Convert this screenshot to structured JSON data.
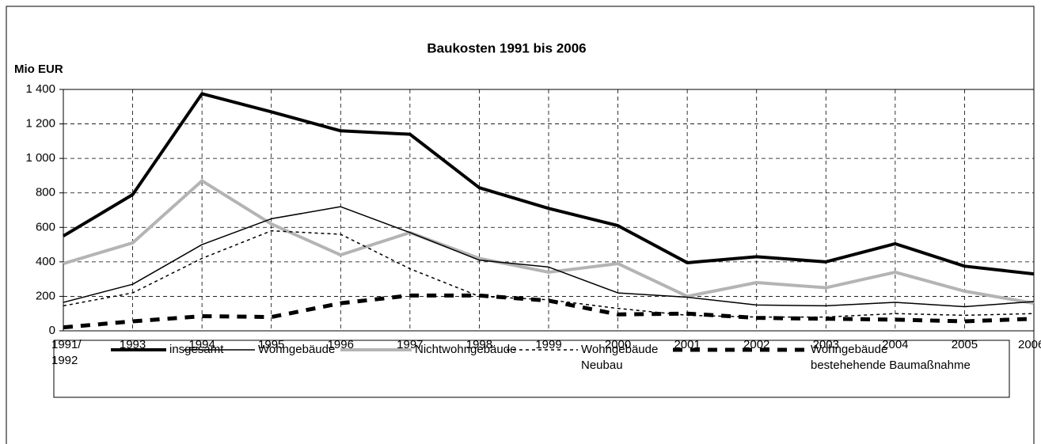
{
  "chart_data": {
    "type": "line",
    "title": "Baukosten 1991 bis 2006",
    "y_label": "Mio EUR",
    "categories": [
      "1991/\n1992",
      "1993",
      "1994",
      "1995",
      "1996",
      "1997",
      "1998",
      "1999",
      "2000",
      "2001",
      "2002",
      "2003",
      "2004",
      "2005",
      "2006"
    ],
    "series": [
      {
        "name": "insgesamt",
        "color": "#000000",
        "line_width": 4,
        "dash": "none",
        "values": [
          550,
          790,
          1375,
          1270,
          1160,
          1140,
          830,
          710,
          610,
          395,
          430,
          400,
          505,
          375,
          330
        ]
      },
      {
        "name": "Wohngebäude",
        "color": "#000000",
        "line_width": 1.5,
        "dash": "none",
        "values": [
          165,
          270,
          500,
          650,
          720,
          570,
          410,
          370,
          220,
          195,
          150,
          145,
          165,
          140,
          170
        ]
      },
      {
        "name": "Nichtwohngebäude",
        "color": "#b4b4b4",
        "line_width": 4,
        "dash": "none",
        "values": [
          390,
          510,
          870,
          620,
          440,
          570,
          420,
          340,
          390,
          200,
          280,
          250,
          340,
          230,
          160
        ]
      },
      {
        "name": "Wohngebäude\nNeubau",
        "color": "#000000",
        "line_width": 1.5,
        "dash": "4,4",
        "values": [
          145,
          220,
          420,
          580,
          560,
          360,
          200,
          180,
          130,
          90,
          80,
          80,
          100,
          90,
          100
        ]
      },
      {
        "name": "Wohngebäude\nbestehehende Baumaßnahme",
        "color": "#000000",
        "line_width": 5,
        "dash": "12,10",
        "values": [
          20,
          55,
          85,
          80,
          160,
          205,
          205,
          175,
          95,
          100,
          75,
          70,
          65,
          55,
          70
        ]
      }
    ],
    "ylim": [
      0,
      1400
    ],
    "yticks": [
      0,
      200,
      400,
      600,
      800,
      {
        "value": 1000,
        "label": "1 000"
      },
      {
        "value": 1200,
        "label": "1 200"
      },
      {
        "value": 1400,
        "label": "1 400"
      }
    ],
    "grid": true,
    "legend": "bottom"
  }
}
